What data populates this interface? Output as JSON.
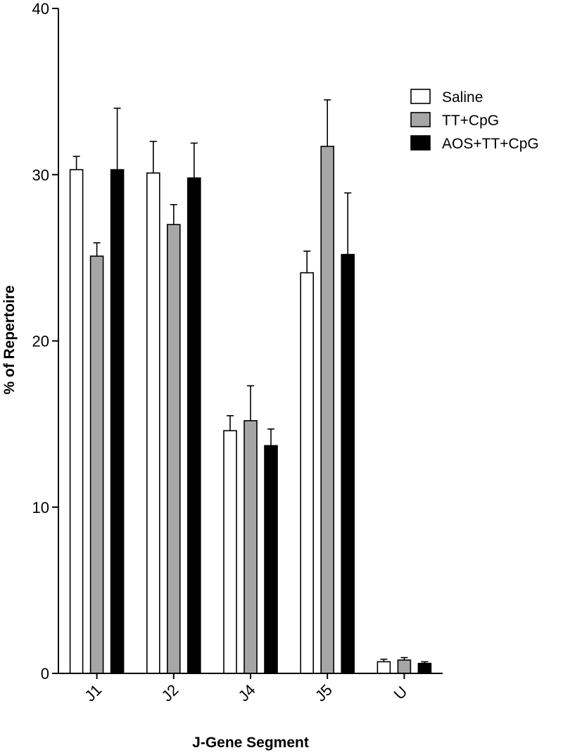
{
  "chart_data": {
    "type": "bar",
    "title": "",
    "xlabel": "J-Gene  Segment",
    "ylabel": "% of Repertoire",
    "ylim": [
      0,
      40
    ],
    "yticks": [
      0,
      10,
      20,
      30,
      40
    ],
    "grid": false,
    "legend_position": "top-right",
    "categories": [
      "J1",
      "J2",
      "J4",
      "J5",
      "U"
    ],
    "series": [
      {
        "name": "Saline",
        "fill": "#ffffff",
        "values": [
          30.3,
          30.1,
          14.6,
          24.1,
          0.7
        ],
        "error": [
          0.8,
          1.9,
          0.9,
          1.3,
          0.15
        ]
      },
      {
        "name": "TT+CpG",
        "fill": "#a6a6a6",
        "values": [
          25.1,
          27.0,
          15.2,
          31.7,
          0.8
        ],
        "error": [
          0.8,
          1.2,
          2.1,
          2.8,
          0.15
        ]
      },
      {
        "name": "AOS+TT+CpG",
        "fill": "#000000",
        "values": [
          30.3,
          29.8,
          13.7,
          25.2,
          0.6
        ],
        "error": [
          3.7,
          2.1,
          1.0,
          3.7,
          0.1
        ]
      }
    ]
  }
}
